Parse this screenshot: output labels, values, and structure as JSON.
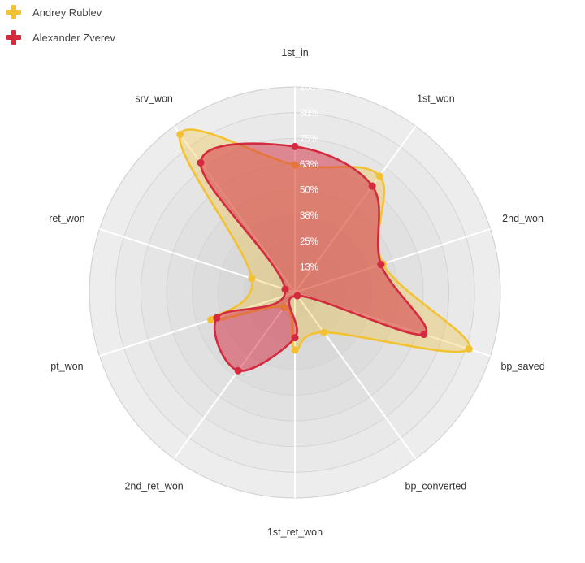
{
  "chart_data": {
    "type": "radar",
    "axes": [
      "1st_in",
      "1st_won",
      "2nd_won",
      "bp_saved",
      "bp_converted",
      "1st_ret_won",
      "2nd_ret_won",
      "pt_won",
      "ret_won",
      "srv_won"
    ],
    "tick_labels": [
      "13%",
      "25%",
      "38%",
      "50%",
      "63%",
      "75%",
      "88%",
      "100%"
    ],
    "range": [
      0,
      100
    ],
    "legend_position": "top-left",
    "series": [
      {
        "name": "Andrey Rublev",
        "color": "#f3c233",
        "values": [
          62,
          70,
          45,
          89,
          24,
          28,
          9,
          43,
          22,
          95
        ]
      },
      {
        "name": "Alexander Zverev",
        "color": "#d42a3e",
        "values": [
          71,
          64,
          44,
          66,
          2,
          22,
          47,
          40,
          5,
          78
        ]
      }
    ]
  }
}
